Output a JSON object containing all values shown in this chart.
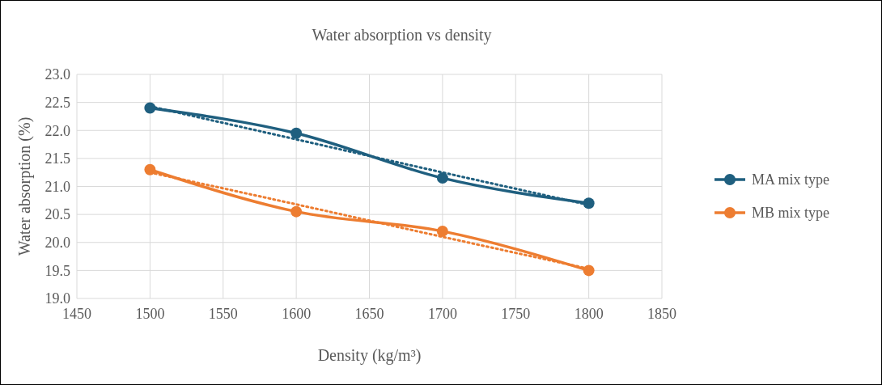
{
  "chart_data": {
    "type": "line",
    "title": "Water absorption vs density",
    "xlabel": "Density (kg/m³)",
    "ylabel": "Water absorption (%)",
    "x": [
      1500,
      1600,
      1700,
      1800
    ],
    "series": [
      {
        "name": "MA mix type",
        "color": "#1f5f7f",
        "values": [
          22.4,
          21.95,
          21.15,
          20.7
        ]
      },
      {
        "name": "MB mix type",
        "color": "#ed7d31",
        "values": [
          21.3,
          20.55,
          20.2,
          19.5
        ]
      },
      {
        "type": "line",
        "color": "#1f5f7f",
        "values": [
          22.43,
          21.84,
          21.25,
          20.67
        ],
        "line_style": "dotted",
        "marker": "none"
      },
      {
        "type": "line",
        "color": "#ed7d31",
        "values": [
          21.25,
          20.68,
          20.1,
          19.53
        ],
        "line_style": "dotted",
        "marker": "none"
      }
    ],
    "xlim": [
      1450,
      1850
    ],
    "xticks": [
      1450,
      1500,
      1550,
      1600,
      1650,
      1700,
      1750,
      1800,
      1850
    ],
    "ylim": [
      19,
      23
    ],
    "yticks": [
      {
        "value": 19,
        "label": "19.0"
      },
      {
        "value": 19.5,
        "label": "19.5"
      },
      {
        "value": 20,
        "label": "20.0"
      },
      {
        "value": 20.5,
        "label": "20.5"
      },
      {
        "value": 21,
        "label": "21.0"
      },
      {
        "value": 21.5,
        "label": "21.5"
      },
      {
        "value": 22,
        "label": "22.0"
      },
      {
        "value": 22.5,
        "label": "22.5"
      },
      {
        "value": 23,
        "label": "23.0"
      }
    ],
    "grid": true,
    "legend": "right",
    "marker": "circle",
    "line_style": "solid"
  }
}
